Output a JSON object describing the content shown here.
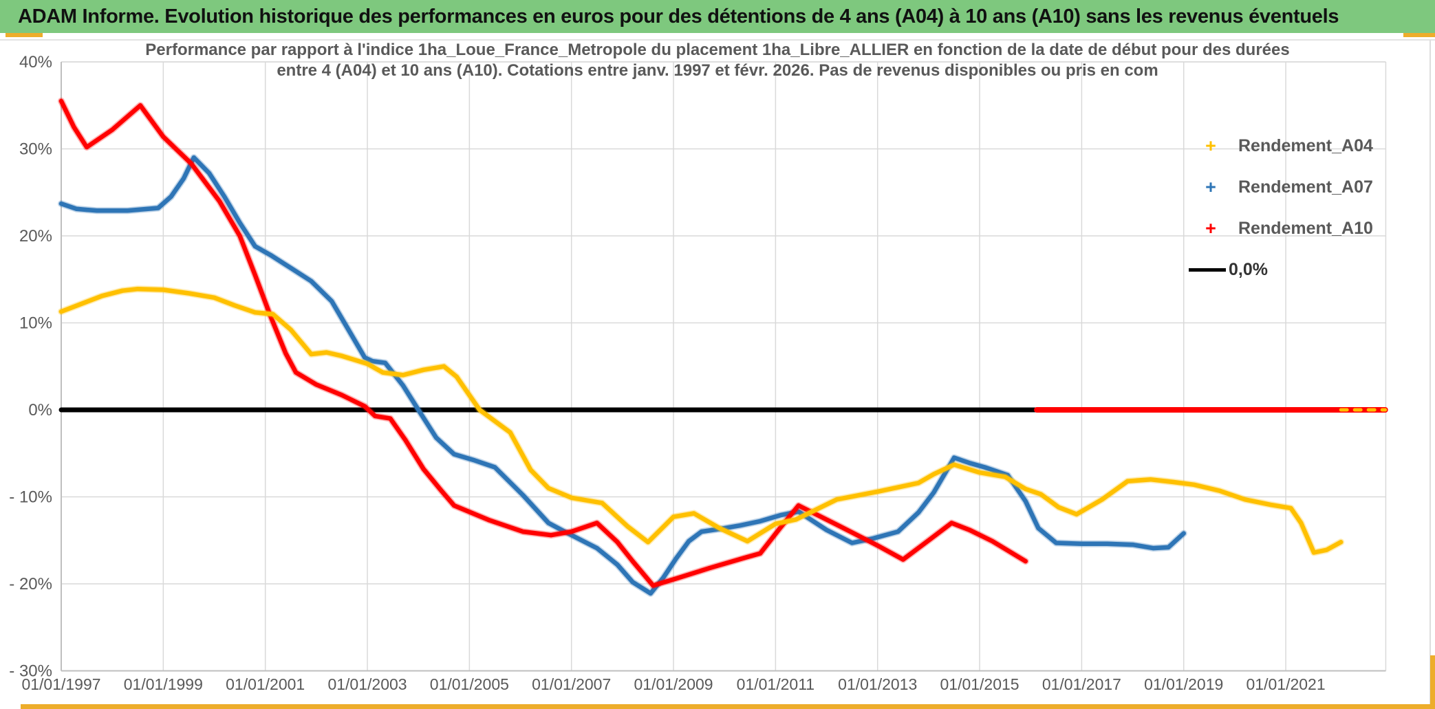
{
  "banner": {
    "title": "ADAM Informe. Evolution historique des performances en euros pour des détentions de 4 ans (A04) à 10 ans (A10) sans les revenus éventuels",
    "bg_color": "#7EC87E",
    "accent_color": "#EDAD2B"
  },
  "chart_data": {
    "type": "line",
    "title_line1": "Performance par rapport à l'indice 1ha_Loue_France_Metropole  du placement 1ha_Libre_ALLIER en fonction de la date de début pour des durées",
    "title_line2": "entre 4 (A04) et 10 ans (A10). Cotations entre janv. 1997 et févr. 2026. Pas de revenus disponibles ou pris en com",
    "xlabel": "",
    "ylabel": "",
    "x_range_years": [
      1997.0,
      2022.96
    ],
    "ylim": [
      -30,
      40
    ],
    "grid": true,
    "legend_position": "top-right",
    "x_ticks": [
      {
        "year": 1997,
        "label": "01/01/1997"
      },
      {
        "year": 1999,
        "label": "01/01/1999"
      },
      {
        "year": 2001,
        "label": "01/01/2001"
      },
      {
        "year": 2003,
        "label": "01/01/2003"
      },
      {
        "year": 2005,
        "label": "01/01/2005"
      },
      {
        "year": 2007,
        "label": "01/01/2007"
      },
      {
        "year": 2009,
        "label": "01/01/2009"
      },
      {
        "year": 2011,
        "label": "01/01/2011"
      },
      {
        "year": 2013,
        "label": "01/01/2013"
      },
      {
        "year": 2015,
        "label": "01/01/2015"
      },
      {
        "year": 2017,
        "label": "01/01/2017"
      },
      {
        "year": 2019,
        "label": "01/01/2019"
      },
      {
        "year": 2021,
        "label": "01/01/2021"
      }
    ],
    "y_ticks": [
      {
        "value": 40,
        "label": "40%"
      },
      {
        "value": 30,
        "label": "30%"
      },
      {
        "value": 20,
        "label": "20%"
      },
      {
        "value": 10,
        "label": "10%"
      },
      {
        "value": 0,
        "label": "0%"
      },
      {
        "value": -10,
        "label": "- 10%"
      },
      {
        "value": -20,
        "label": "- 20%"
      },
      {
        "value": -30,
        "label": "- 30%"
      }
    ],
    "legend": [
      {
        "label": "Rendement_A04",
        "marker": "+",
        "color": "#FFC000"
      },
      {
        "label": "Rendement_A07",
        "marker": "+",
        "color": "#2E75B6"
      },
      {
        "label": "Rendement_A10",
        "marker": "+",
        "color": "#FF0000"
      },
      {
        "label": "0,0%",
        "marker": "line",
        "color": "#000000"
      }
    ],
    "zero_reference_line": {
      "name": "0,0%",
      "color": "#000000",
      "points": [
        [
          1997.0,
          0
        ],
        [
          2016.12,
          0
        ]
      ]
    },
    "zero_placeholder_segments": [
      {
        "series": "Rendement_A10",
        "color": "#FF0000",
        "points": [
          [
            2016.12,
            0
          ],
          [
            2022.95,
            0
          ]
        ]
      },
      {
        "series": "Rendement_A04",
        "color": "#FFC000",
        "style": "dashed-overlay",
        "points": [
          [
            2022.08,
            0
          ],
          [
            2022.95,
            0
          ]
        ]
      }
    ],
    "series": [
      {
        "name": "Rendement_A04",
        "color": "#FFC000",
        "points": [
          [
            1997.0,
            11.3
          ],
          [
            1997.4,
            12.2
          ],
          [
            1997.8,
            13.1
          ],
          [
            1998.2,
            13.7
          ],
          [
            1998.5,
            13.9
          ],
          [
            1999.0,
            13.8
          ],
          [
            1999.5,
            13.4
          ],
          [
            2000.0,
            12.9
          ],
          [
            2000.4,
            12.0
          ],
          [
            2000.8,
            11.2
          ],
          [
            2001.15,
            11.0
          ],
          [
            2001.5,
            9.2
          ],
          [
            2001.9,
            6.4
          ],
          [
            2002.2,
            6.6
          ],
          [
            2002.5,
            6.2
          ],
          [
            2003.0,
            5.3
          ],
          [
            2003.3,
            4.3
          ],
          [
            2003.7,
            4.0
          ],
          [
            2004.1,
            4.6
          ],
          [
            2004.5,
            5.0
          ],
          [
            2004.75,
            3.8
          ],
          [
            2005.2,
            0.0
          ],
          [
            2005.8,
            -2.6
          ],
          [
            2006.2,
            -6.9
          ],
          [
            2006.55,
            -9.0
          ],
          [
            2007.0,
            -10.1
          ],
          [
            2007.6,
            -10.7
          ],
          [
            2008.1,
            -13.4
          ],
          [
            2008.5,
            -15.2
          ],
          [
            2009.0,
            -12.3
          ],
          [
            2009.4,
            -11.9
          ],
          [
            2009.9,
            -13.6
          ],
          [
            2010.45,
            -15.1
          ],
          [
            2011.0,
            -13.1
          ],
          [
            2011.4,
            -12.6
          ],
          [
            2012.2,
            -10.3
          ],
          [
            2013.0,
            -9.4
          ],
          [
            2013.8,
            -8.4
          ],
          [
            2014.1,
            -7.4
          ],
          [
            2014.5,
            -6.3
          ],
          [
            2015.0,
            -7.2
          ],
          [
            2015.5,
            -7.7
          ],
          [
            2015.9,
            -9.1
          ],
          [
            2016.2,
            -9.7
          ],
          [
            2016.55,
            -11.2
          ],
          [
            2016.9,
            -12.0
          ],
          [
            2017.4,
            -10.3
          ],
          [
            2017.9,
            -8.2
          ],
          [
            2018.35,
            -8.0
          ],
          [
            2018.8,
            -8.3
          ],
          [
            2019.2,
            -8.6
          ],
          [
            2019.7,
            -9.3
          ],
          [
            2020.2,
            -10.3
          ],
          [
            2020.7,
            -10.9
          ],
          [
            2021.1,
            -11.3
          ],
          [
            2021.3,
            -13.0
          ],
          [
            2021.55,
            -16.4
          ],
          [
            2021.8,
            -16.1
          ],
          [
            2022.08,
            -15.2
          ]
        ]
      },
      {
        "name": "Rendement_A07",
        "color": "#2E75B6",
        "points": [
          [
            1997.0,
            23.7
          ],
          [
            1997.3,
            23.1
          ],
          [
            1997.7,
            22.9
          ],
          [
            1998.3,
            22.9
          ],
          [
            1998.9,
            23.2
          ],
          [
            1999.15,
            24.5
          ],
          [
            1999.4,
            26.6
          ],
          [
            1999.6,
            29.0
          ],
          [
            1999.9,
            27.2
          ],
          [
            2000.2,
            24.5
          ],
          [
            2000.5,
            21.5
          ],
          [
            2000.8,
            18.8
          ],
          [
            2001.1,
            17.8
          ],
          [
            2001.5,
            16.3
          ],
          [
            2001.9,
            14.8
          ],
          [
            2002.3,
            12.5
          ],
          [
            2002.6,
            9.5
          ],
          [
            2002.95,
            6.0
          ],
          [
            2003.1,
            5.6
          ],
          [
            2003.35,
            5.4
          ],
          [
            2003.7,
            2.8
          ],
          [
            2004.0,
            0.0
          ],
          [
            2004.35,
            -3.2
          ],
          [
            2004.7,
            -5.1
          ],
          [
            2005.1,
            -5.8
          ],
          [
            2005.5,
            -6.6
          ],
          [
            2006.05,
            -9.8
          ],
          [
            2006.55,
            -13.0
          ],
          [
            2006.9,
            -14.1
          ],
          [
            2007.5,
            -15.9
          ],
          [
            2007.9,
            -17.8
          ],
          [
            2008.2,
            -19.8
          ],
          [
            2008.55,
            -21.1
          ],
          [
            2008.8,
            -19.3
          ],
          [
            2009.05,
            -17.1
          ],
          [
            2009.3,
            -15.1
          ],
          [
            2009.55,
            -14.0
          ],
          [
            2009.9,
            -13.7
          ],
          [
            2010.3,
            -13.3
          ],
          [
            2010.7,
            -12.8
          ],
          [
            2011.1,
            -12.1
          ],
          [
            2011.45,
            -11.7
          ],
          [
            2012.0,
            -13.8
          ],
          [
            2012.5,
            -15.3
          ],
          [
            2012.9,
            -14.8
          ],
          [
            2013.4,
            -14.0
          ],
          [
            2013.8,
            -11.8
          ],
          [
            2014.1,
            -9.5
          ],
          [
            2014.5,
            -5.5
          ],
          [
            2014.8,
            -6.1
          ],
          [
            2015.1,
            -6.6
          ],
          [
            2015.55,
            -7.5
          ],
          [
            2015.9,
            -10.5
          ],
          [
            2016.15,
            -13.6
          ],
          [
            2016.5,
            -15.3
          ],
          [
            2017.0,
            -15.4
          ],
          [
            2017.5,
            -15.4
          ],
          [
            2018.0,
            -15.5
          ],
          [
            2018.4,
            -15.9
          ],
          [
            2018.7,
            -15.8
          ],
          [
            2019.0,
            -14.2
          ]
        ]
      },
      {
        "name": "Rendement_A10",
        "color": "#FF0000",
        "points": [
          [
            1997.0,
            35.5
          ],
          [
            1997.25,
            32.5
          ],
          [
            1997.5,
            30.2
          ],
          [
            1998.0,
            32.2
          ],
          [
            1998.55,
            35.0
          ],
          [
            1999.0,
            31.4
          ],
          [
            1999.55,
            28.3
          ],
          [
            2000.1,
            24.0
          ],
          [
            2000.5,
            20.0
          ],
          [
            2000.8,
            15.5
          ],
          [
            2001.1,
            10.8
          ],
          [
            2001.4,
            6.5
          ],
          [
            2001.6,
            4.3
          ],
          [
            2002.0,
            2.9
          ],
          [
            2002.5,
            1.7
          ],
          [
            2002.95,
            0.4
          ],
          [
            2003.15,
            -0.7
          ],
          [
            2003.45,
            -1.0
          ],
          [
            2003.75,
            -3.5
          ],
          [
            2004.1,
            -6.8
          ],
          [
            2004.45,
            -9.3
          ],
          [
            2004.7,
            -11.0
          ],
          [
            2005.4,
            -12.7
          ],
          [
            2006.05,
            -14.0
          ],
          [
            2006.6,
            -14.4
          ],
          [
            2007.0,
            -14.0
          ],
          [
            2007.5,
            -13.0
          ],
          [
            2007.9,
            -15.2
          ],
          [
            2008.2,
            -17.4
          ],
          [
            2008.6,
            -20.2
          ],
          [
            2009.05,
            -19.4
          ],
          [
            2009.7,
            -18.2
          ],
          [
            2010.4,
            -17.0
          ],
          [
            2010.7,
            -16.5
          ],
          [
            2011.1,
            -13.5
          ],
          [
            2011.45,
            -11.0
          ],
          [
            2012.2,
            -13.2
          ],
          [
            2013.0,
            -15.6
          ],
          [
            2013.5,
            -17.2
          ],
          [
            2014.0,
            -15.0
          ],
          [
            2014.45,
            -13.0
          ],
          [
            2014.8,
            -13.8
          ],
          [
            2015.25,
            -15.1
          ],
          [
            2015.9,
            -17.4
          ]
        ]
      }
    ],
    "colors": {
      "gridline": "#D9D9D9",
      "axis": "#BFBFBF",
      "tick_text": "#595959"
    }
  }
}
